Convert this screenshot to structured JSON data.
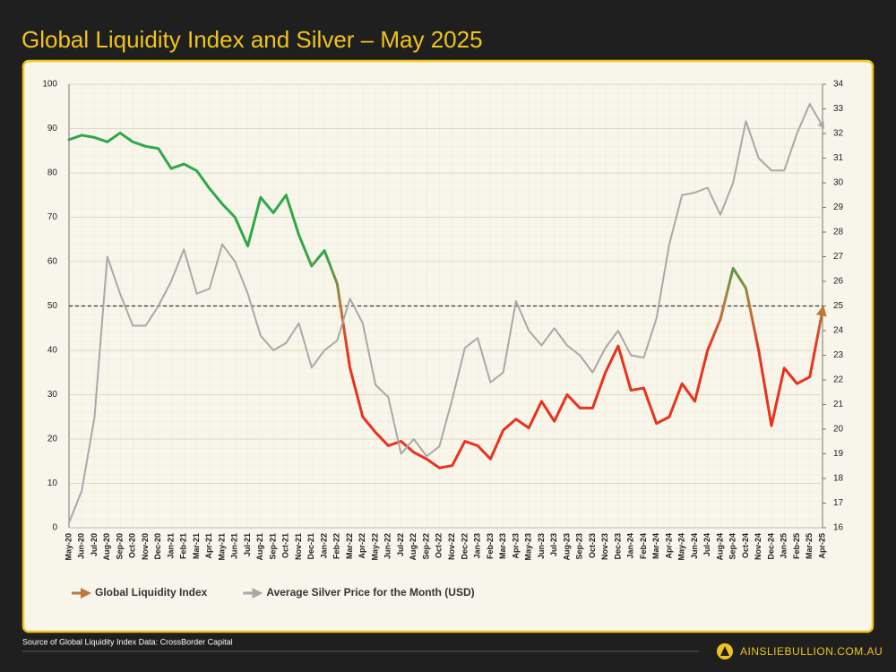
{
  "chart_data": {
    "type": "line",
    "title": "Global Liquidity Index and Silver – May 2025",
    "categories": [
      "May-20",
      "Jun-20",
      "Jul-20",
      "Aug-20",
      "Sep-20",
      "Oct-20",
      "Nov-20",
      "Dec-20",
      "Jan-21",
      "Feb-21",
      "Mar-21",
      "Apr-21",
      "May-21",
      "Jun-21",
      "Jul-21",
      "Aug-21",
      "Sep-21",
      "Oct-21",
      "Nov-21",
      "Dec-21",
      "Jan-22",
      "Feb-22",
      "Mar-22",
      "Apr-22",
      "May-22",
      "Jun-22",
      "Jul-22",
      "Aug-22",
      "Sep-22",
      "Oct-22",
      "Nov-22",
      "Dec-22",
      "Jan-23",
      "Feb-23",
      "Mar-23",
      "Apr-23",
      "May-23",
      "Jun-23",
      "Jul-23",
      "Aug-23",
      "Sep-23",
      "Oct-23",
      "Nov-23",
      "Dec-23",
      "Jan-24",
      "Feb-24",
      "Mar-24",
      "Apr-24",
      "May-24",
      "Jun-24",
      "Jul-24",
      "Aug-24",
      "Sep-24",
      "Oct-24",
      "Nov-24",
      "Dec-24",
      "Jan-25",
      "Feb-25",
      "Mar-25",
      "Apr-25"
    ],
    "series": [
      {
        "name": "Global Liquidity Index",
        "color": "#b97a3c",
        "color_high": "#2fa84a",
        "color_low": "#e8321e",
        "values": [
          87.5,
          88.5,
          88,
          87,
          89,
          87,
          86,
          85.5,
          81,
          82,
          80.5,
          76.5,
          73,
          70,
          63.5,
          74.5,
          71,
          75,
          66,
          59,
          62.5,
          55,
          36,
          25,
          21.5,
          18.5,
          19.5,
          17,
          15.5,
          13.5,
          14,
          19.5,
          18.5,
          15.5,
          22,
          24.5,
          22.5,
          28.5,
          24,
          30,
          27,
          27,
          35,
          41,
          31,
          31.5,
          23.5,
          25,
          32.5,
          28.5,
          40,
          47,
          58.5,
          54,
          40,
          23,
          36,
          32.5,
          34,
          49
        ]
      },
      {
        "name": "Average Silver Price for the Month (USD)",
        "color": "#a8a8a8",
        "axis": "y2",
        "values": [
          16.2,
          17.5,
          20.5,
          27,
          25.5,
          24.2,
          24.2,
          25,
          26,
          27.3,
          25.5,
          25.7,
          27.5,
          26.8,
          25.5,
          23.8,
          23.2,
          23.5,
          24.3,
          22.5,
          23.2,
          23.6,
          25.3,
          24.3,
          21.8,
          21.3,
          19,
          19.6,
          18.9,
          19.3,
          21.2,
          23.3,
          23.7,
          21.9,
          22.3,
          25.2,
          24,
          23.4,
          24.1,
          23.4,
          23,
          22.3,
          23.3,
          24,
          23,
          22.9,
          24.5,
          27.5,
          29.5,
          29.6,
          29.8,
          28.7,
          30,
          32.5,
          31,
          30.5,
          30.5,
          32,
          33.2,
          32.3
        ]
      }
    ],
    "ylim": [
      0,
      100
    ],
    "yticks": [
      0,
      10,
      20,
      30,
      40,
      50,
      60,
      70,
      80,
      90,
      100
    ],
    "y2lim": [
      16,
      34
    ],
    "y2ticks": [
      16,
      17,
      18,
      19,
      20,
      21,
      22,
      23,
      24,
      25,
      26,
      27,
      28,
      29,
      30,
      31,
      32,
      33,
      34
    ],
    "reference_line": 50,
    "grid": true
  },
  "footer": {
    "source": "Source of Global Liquidity Index Data: CrossBorder Capital",
    "brand": "AINSLIEBULLION.COM.AU"
  }
}
